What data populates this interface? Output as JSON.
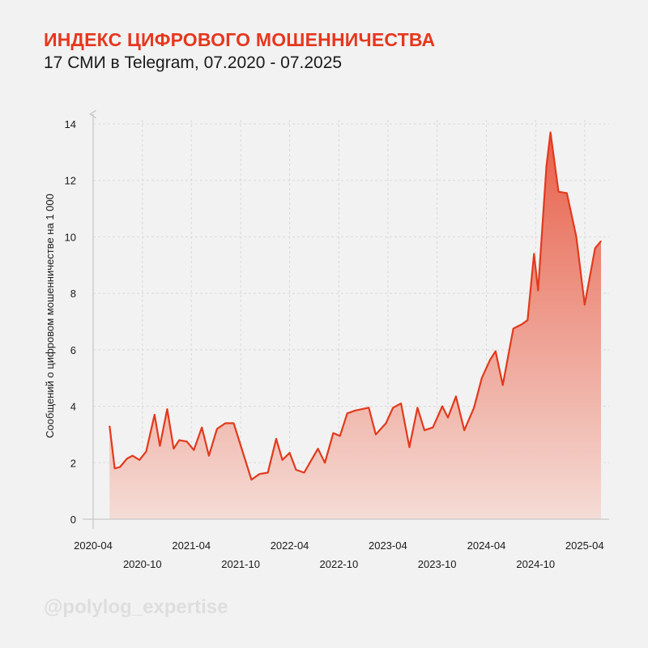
{
  "header": {
    "title": "ИНДЕКС ЦИФРОВОГО МОШЕННИЧЕСТВА",
    "subtitle": "17 СМИ в Telegram, 07.2020 - 07.2025"
  },
  "watermark": "@polylog_expertise",
  "colors": {
    "accent": "#e6371e",
    "line": "#e23a1c",
    "fill_top": "#e8604a",
    "fill_bottom": "#f4dcd6"
  },
  "chart_data": {
    "type": "area",
    "title": "",
    "xlabel": "",
    "ylabel": "Сообщений о цифровом мошенничестве на 1 000",
    "ylim": [
      0,
      14
    ],
    "yticks": [
      0,
      2,
      4,
      6,
      8,
      10,
      12,
      14
    ],
    "xlim": [
      "2020-04",
      "2025-07"
    ],
    "xticks_upper": [
      "2020-04",
      "2021-04",
      "2022-04",
      "2023-04",
      "2024-04",
      "2025-04"
    ],
    "xticks_lower": [
      "2020-10",
      "2021-10",
      "2022-10",
      "2023-10",
      "2024-10"
    ],
    "grid": true,
    "series": [
      {
        "values": [
          [
            "2020-06-01",
            3.3
          ],
          [
            "2020-06-20",
            1.8
          ],
          [
            "2020-07-10",
            1.85
          ],
          [
            "2020-08-05",
            2.15
          ],
          [
            "2020-08-25",
            2.25
          ],
          [
            "2020-09-20",
            2.1
          ],
          [
            "2020-10-15",
            2.4
          ],
          [
            "2020-11-15",
            3.7
          ],
          [
            "2020-12-05",
            2.6
          ],
          [
            "2021-01-01",
            3.9
          ],
          [
            "2021-01-25",
            2.5
          ],
          [
            "2021-02-15",
            2.8
          ],
          [
            "2021-03-15",
            2.75
          ],
          [
            "2021-04-10",
            2.45
          ],
          [
            "2021-05-10",
            3.25
          ],
          [
            "2021-06-05",
            2.25
          ],
          [
            "2021-07-05",
            3.2
          ],
          [
            "2021-08-05",
            3.4
          ],
          [
            "2021-09-05",
            3.4
          ],
          [
            "2021-11-10",
            1.4
          ],
          [
            "2021-12-10",
            1.6
          ],
          [
            "2022-01-10",
            1.65
          ],
          [
            "2022-02-10",
            2.85
          ],
          [
            "2022-03-05",
            2.1
          ],
          [
            "2022-04-01",
            2.35
          ],
          [
            "2022-04-25",
            1.75
          ],
          [
            "2022-05-25",
            1.65
          ],
          [
            "2022-07-15",
            2.5
          ],
          [
            "2022-08-10",
            2.0
          ],
          [
            "2022-09-10",
            3.05
          ],
          [
            "2022-10-05",
            2.95
          ],
          [
            "2022-11-01",
            3.75
          ],
          [
            "2022-12-01",
            3.85
          ],
          [
            "2023-01-20",
            3.95
          ],
          [
            "2023-02-15",
            3.0
          ],
          [
            "2023-03-25",
            3.4
          ],
          [
            "2023-04-20",
            3.95
          ],
          [
            "2023-05-20",
            4.1
          ],
          [
            "2023-06-20",
            2.55
          ],
          [
            "2023-07-20",
            3.95
          ],
          [
            "2023-08-15",
            3.15
          ],
          [
            "2023-09-15",
            3.25
          ],
          [
            "2023-10-20",
            4.0
          ],
          [
            "2023-11-10",
            3.6
          ],
          [
            "2023-12-10",
            4.35
          ],
          [
            "2024-01-10",
            3.15
          ],
          [
            "2024-02-15",
            3.95
          ],
          [
            "2024-03-15",
            5.0
          ],
          [
            "2024-04-15",
            5.65
          ],
          [
            "2024-05-05",
            5.95
          ],
          [
            "2024-06-01",
            4.75
          ],
          [
            "2024-07-10",
            6.75
          ],
          [
            "2024-08-10",
            6.9
          ],
          [
            "2024-09-01",
            7.05
          ],
          [
            "2024-09-25",
            9.4
          ],
          [
            "2024-10-10",
            8.1
          ],
          [
            "2024-11-10",
            12.5
          ],
          [
            "2024-11-25",
            13.7
          ],
          [
            "2024-12-25",
            11.6
          ],
          [
            "2025-01-25",
            11.55
          ],
          [
            "2025-03-01",
            10.0
          ],
          [
            "2025-04-01",
            7.6
          ],
          [
            "2025-05-10",
            9.6
          ],
          [
            "2025-06-01",
            9.85
          ]
        ]
      }
    ]
  }
}
